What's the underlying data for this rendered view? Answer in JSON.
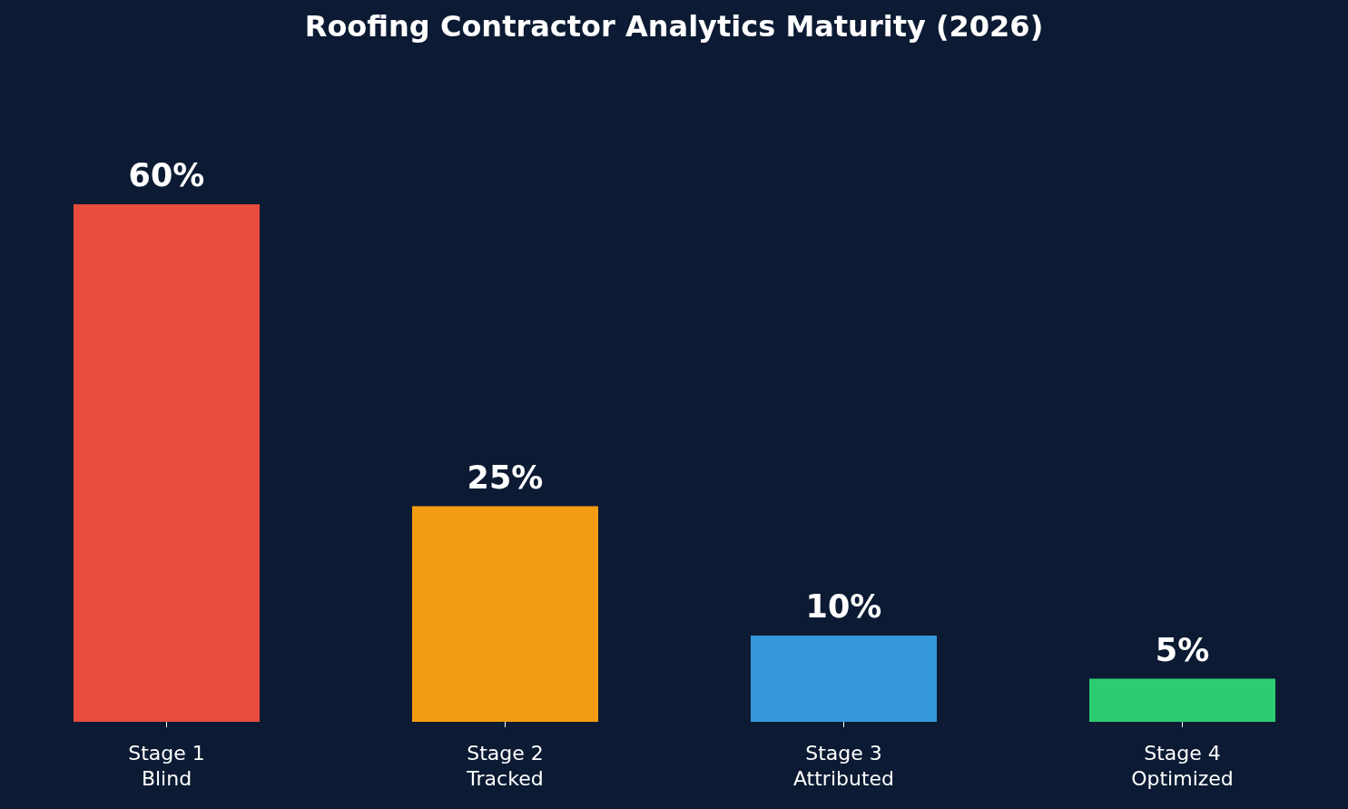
{
  "chart_data": {
    "type": "bar",
    "title": "Roofing Contractor Analytics Maturity (2026)",
    "categories": [
      "Stage 1\nBlind",
      "Stage 2\nTracked",
      "Stage 3\nAttributed",
      "Stage 4\nOptimized"
    ],
    "values": [
      60,
      25,
      10,
      5
    ],
    "colors": [
      "#e74c3c",
      "#f39c12",
      "#3498db",
      "#2ecc71"
    ],
    "value_labels": [
      "60%",
      "25%",
      "10%",
      "5%"
    ],
    "grid": false,
    "legend": false
  }
}
